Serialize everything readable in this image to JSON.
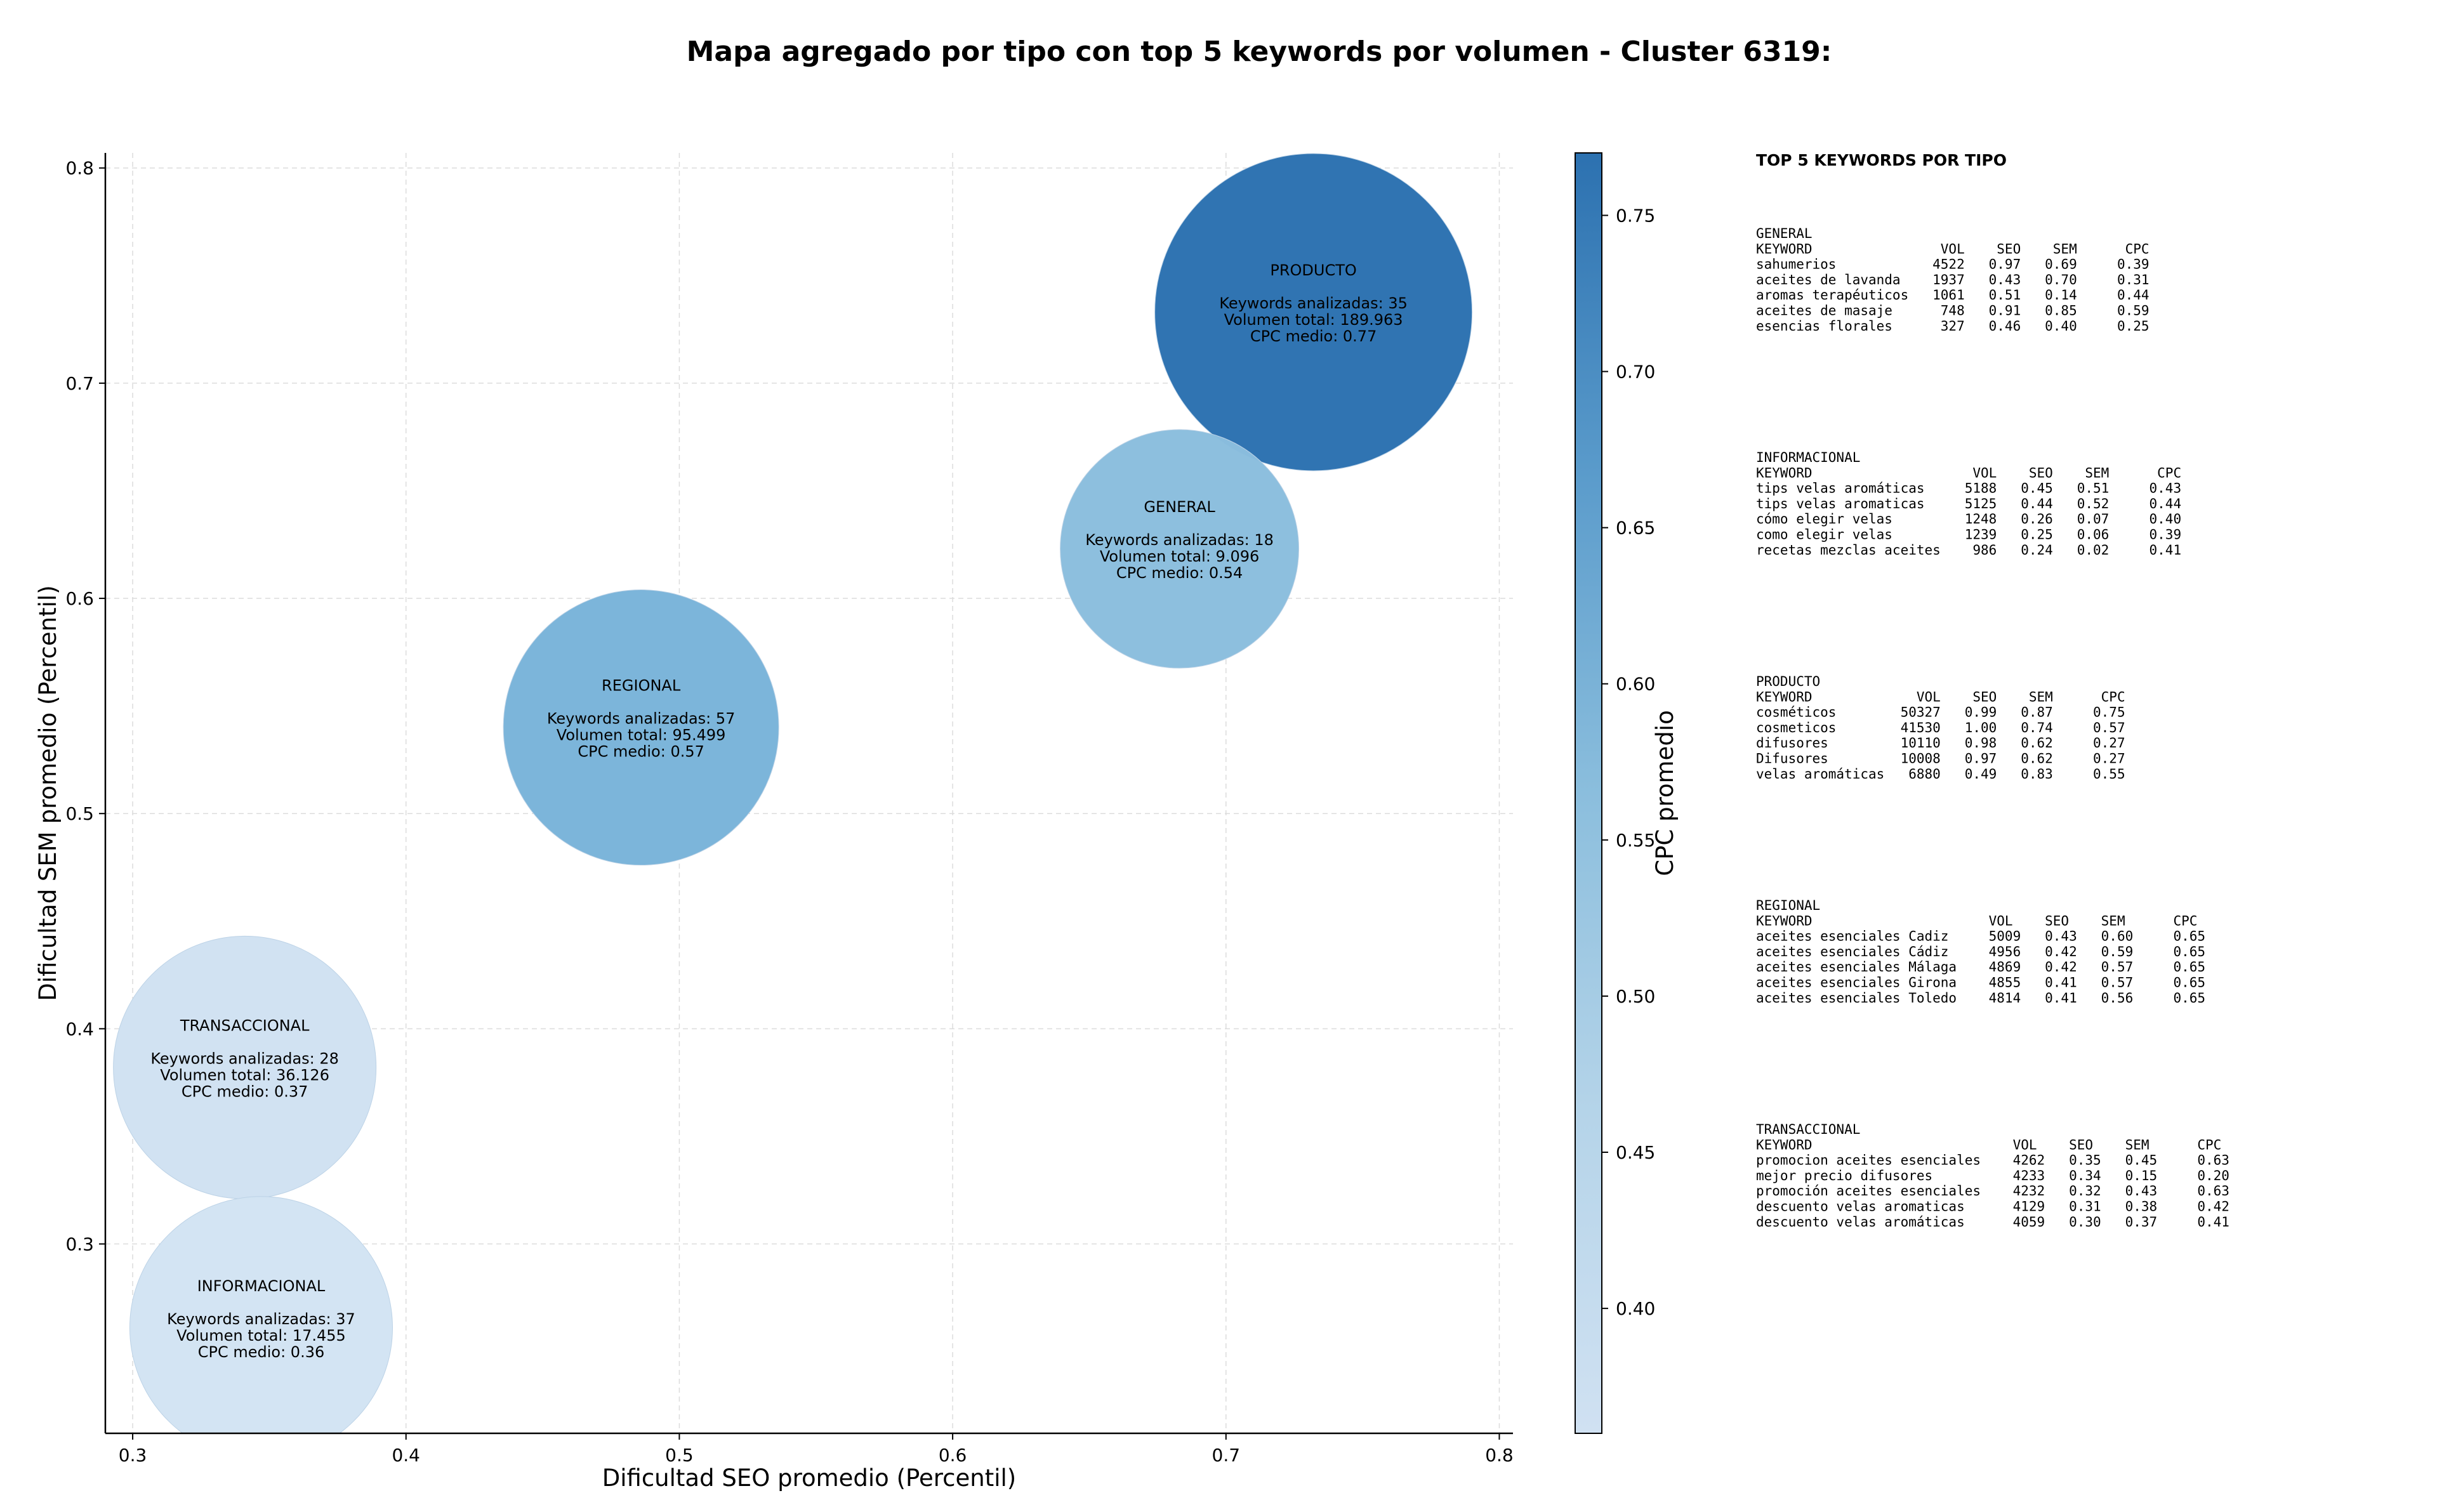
{
  "title": "Mapa agregado por tipo con top 5 keywords por volumen - Cluster 6319:",
  "chart_data": {
    "type": "scatter",
    "xlabel": "Dificultad SEO promedio (Percentil)",
    "ylabel": "Dificultad SEM promedio (Percentil)",
    "xlim": [
      0.29,
      0.805
    ],
    "ylim": [
      0.212,
      0.807
    ],
    "x_ticks": [
      "0.3",
      "0.4",
      "0.5",
      "0.6",
      "0.7",
      "0.8"
    ],
    "y_ticks": [
      "0.3",
      "0.4",
      "0.5",
      "0.6",
      "0.7",
      "0.8"
    ],
    "grid": true,
    "colorbar": {
      "label": "CPC promedio",
      "range": [
        0.36,
        0.77
      ],
      "ticks": [
        "0.40",
        "0.45",
        "0.50",
        "0.55",
        "0.60",
        "0.65",
        "0.70",
        "0.75"
      ]
    },
    "bubbles": [
      {
        "tipo": "PRODUCTO",
        "x": 0.732,
        "y": 0.733,
        "keywords_line": "Keywords analizadas: 35",
        "volumen_line": "Volumen total: 189.963",
        "cpc_line": "CPC medio: 0.77",
        "volume": 189963,
        "cpc": 0.77,
        "color": "#2c71b0"
      },
      {
        "tipo": "GENERAL",
        "x": 0.683,
        "y": 0.623,
        "keywords_line": "Keywords analizadas: 18",
        "volumen_line": "Volumen total: 9.096",
        "cpc_line": "CPC medio: 0.54",
        "volume": 9096,
        "cpc": 0.54,
        "color": "#8bbedd"
      },
      {
        "tipo": "REGIONAL",
        "x": 0.486,
        "y": 0.54,
        "keywords_line": "Keywords analizadas: 57",
        "volumen_line": "Volumen total: 95.499",
        "cpc_line": "CPC medio: 0.57",
        "volume": 95499,
        "cpc": 0.57,
        "color": "#79b4d9"
      },
      {
        "tipo": "TRANSACCIONAL",
        "x": 0.341,
        "y": 0.382,
        "keywords_line": "Keywords analizadas: 28",
        "volumen_line": "Volumen total: 36.126",
        "cpc_line": "CPC medio: 0.37",
        "volume": 36126,
        "cpc": 0.37,
        "color": "#d0e1f2"
      },
      {
        "tipo": "INFORMACIONAL",
        "x": 0.347,
        "y": 0.261,
        "keywords_line": "Keywords analizadas: 37",
        "volumen_line": "Volumen total: 17.455",
        "cpc_line": "CPC medio: 0.36",
        "volume": 17455,
        "cpc": 0.36,
        "color": "#d2e3f3"
      }
    ]
  },
  "side_panel": {
    "title": "TOP 5 KEYWORDS POR TIPO",
    "blocks": [
      {
        "lines": [
          "GENERAL",
          "KEYWORD                VOL    SEO    SEM      CPC",
          "sahumerios            4522   0.97   0.69     0.39",
          "aceites de lavanda    1937   0.43   0.70     0.31",
          "aromas terapéuticos   1061   0.51   0.14     0.44",
          "aceites de masaje      748   0.91   0.85     0.59",
          "esencias florales      327   0.46   0.40     0.25"
        ]
      },
      {
        "lines": [
          "INFORMACIONAL",
          "KEYWORD                    VOL    SEO    SEM      CPC",
          "tips velas aromáticas     5188   0.45   0.51     0.43",
          "tips velas aromaticas     5125   0.44   0.52     0.44",
          "cómo elegir velas         1248   0.26   0.07     0.40",
          "como elegir velas         1239   0.25   0.06     0.39",
          "recetas mezclas aceites    986   0.24   0.02     0.41"
        ]
      },
      {
        "lines": [
          "PRODUCTO",
          "KEYWORD             VOL    SEO    SEM      CPC",
          "cosméticos        50327   0.99   0.87     0.75",
          "cosmeticos        41530   1.00   0.74     0.57",
          "difusores         10110   0.98   0.62     0.27",
          "Difusores         10008   0.97   0.62     0.27",
          "velas aromáticas   6880   0.49   0.83     0.55"
        ]
      },
      {
        "lines": [
          "REGIONAL",
          "KEYWORD                      VOL    SEO    SEM      CPC",
          "aceites esenciales Cadiz     5009   0.43   0.60     0.65",
          "aceites esenciales Cádiz     4956   0.42   0.59     0.65",
          "aceites esenciales Málaga    4869   0.42   0.57     0.65",
          "aceites esenciales Girona    4855   0.41   0.57     0.65",
          "aceites esenciales Toledo    4814   0.41   0.56     0.65"
        ]
      },
      {
        "lines": [
          "TRANSACCIONAL",
          "KEYWORD                         VOL    SEO    SEM      CPC",
          "promocion aceites esenciales    4262   0.35   0.45     0.63",
          "mejor precio difusores          4233   0.34   0.15     0.20",
          "promoción aceites esenciales    4232   0.32   0.43     0.63",
          "descuento velas aromaticas      4129   0.31   0.38     0.42",
          "descuento velas aromáticas      4059   0.30   0.37     0.41"
        ]
      }
    ]
  }
}
